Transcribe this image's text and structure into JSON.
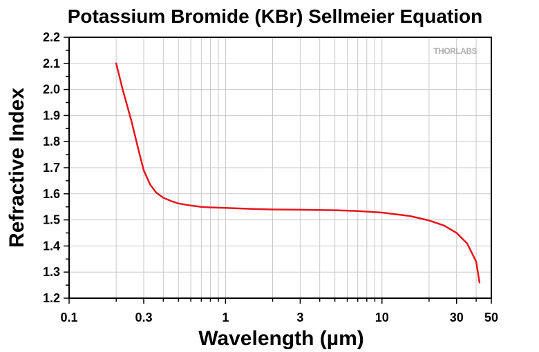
{
  "chart_data": {
    "type": "line",
    "title": "Potassium Bromide (KBr) Sellmeier Equation",
    "xlabel": "Wavelength (µm)",
    "ylabel": "Refractive Index",
    "xscale": "log",
    "xlim": [
      0.1,
      50
    ],
    "ylim": [
      1.2,
      2.2
    ],
    "grid": true,
    "x_ticks": [
      0.1,
      0.3,
      1,
      3,
      10,
      30,
      50
    ],
    "x_tick_labels": [
      "0.1",
      "0.3",
      "1",
      "3",
      "10",
      "30",
      "50"
    ],
    "y_ticks": [
      1.2,
      1.3,
      1.4,
      1.5,
      1.6,
      1.7,
      1.8,
      1.9,
      2.0,
      2.1,
      2.2
    ],
    "y_tick_labels": [
      "1.2",
      "1.3",
      "1.4",
      "1.5",
      "1.6",
      "1.7",
      "1.8",
      "1.9",
      "2.0",
      "2.1",
      "2.2"
    ],
    "series": [
      {
        "color": "#e8141c",
        "x": [
          0.2,
          0.22,
          0.25,
          0.28,
          0.3,
          0.33,
          0.36,
          0.4,
          0.45,
          0.5,
          0.6,
          0.7,
          0.8,
          1.0,
          1.5,
          2,
          3,
          5,
          7,
          10,
          15,
          20,
          25,
          30,
          35,
          40,
          42
        ],
        "y": [
          2.1,
          2.0,
          1.88,
          1.76,
          1.69,
          1.635,
          1.605,
          1.585,
          1.572,
          1.563,
          1.555,
          1.55,
          1.548,
          1.546,
          1.542,
          1.54,
          1.539,
          1.537,
          1.534,
          1.528,
          1.515,
          1.498,
          1.478,
          1.45,
          1.41,
          1.34,
          1.26
        ]
      }
    ],
    "logo": "THORLABS"
  }
}
